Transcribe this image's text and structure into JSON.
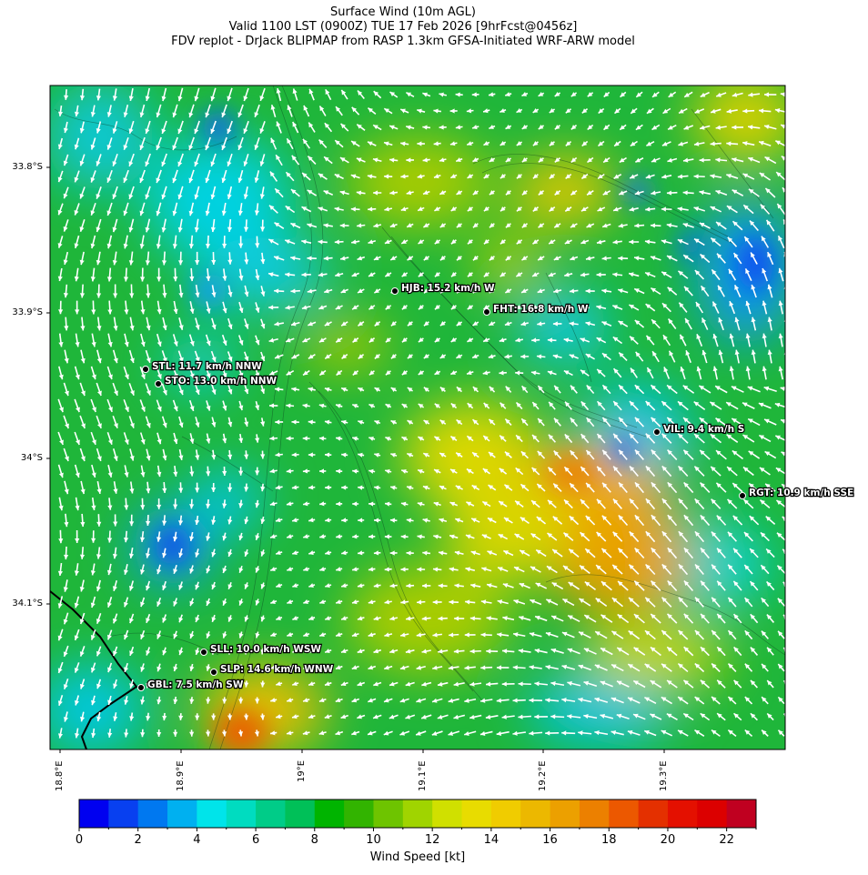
{
  "title": {
    "line1": "Surface Wind (10m AGL)",
    "line2": "Valid 1100 LST (0900Z) TUE 17 Feb 2026 [9hrFcst@0456z]",
    "line3": "FDV replot - DrJack BLIPMAP from RASP 1.3km GFSA-Initiated WRF-ARW model"
  },
  "axes": {
    "lat_labels": [
      "33.8°S",
      "33.9°S",
      "34°S",
      "34.1°S"
    ],
    "lon_labels": [
      "18.8°E",
      "18.9°E",
      "19°E",
      "19.1°E",
      "19.2°E",
      "19.3°E"
    ]
  },
  "stations": [
    {
      "id": "hjb",
      "label": "HJB: 15.2 km/h W"
    },
    {
      "id": "fht",
      "label": "FHT: 16.8 km/h W"
    },
    {
      "id": "stl",
      "label": "STL: 11.7 km/h NNW"
    },
    {
      "id": "sto",
      "label": "STO: 13.0 km/h NNW"
    },
    {
      "id": "vil",
      "label": "VIL: 9.4 km/h S"
    },
    {
      "id": "rgt",
      "label": "RGT: 10.9 km/h SSE"
    },
    {
      "id": "sll",
      "label": "SLL: 10.0 km/h WSW"
    },
    {
      "id": "slp",
      "label": "SLP: 14.6 km/h WNW"
    },
    {
      "id": "gbl",
      "label": "GBL: 7.5 km/h SW"
    }
  ],
  "colorbar": {
    "label": "Wind Speed [kt]",
    "ticks": [
      "0",
      "2",
      "4",
      "6",
      "8",
      "10",
      "12",
      "14",
      "16",
      "18",
      "20",
      "22"
    ],
    "colors": [
      "#0000f0",
      "#0840f0",
      "#0078f0",
      "#00b0f0",
      "#00e4ea",
      "#00dcc0",
      "#00cc88",
      "#00c058",
      "#00b400",
      "#32b400",
      "#6ec400",
      "#a0d400",
      "#d0e000",
      "#e8dc00",
      "#f0cc00",
      "#ecb800",
      "#eca000",
      "#ec8000",
      "#ec5800",
      "#e43000",
      "#e41000",
      "#dc0000",
      "#c00020"
    ]
  }
}
